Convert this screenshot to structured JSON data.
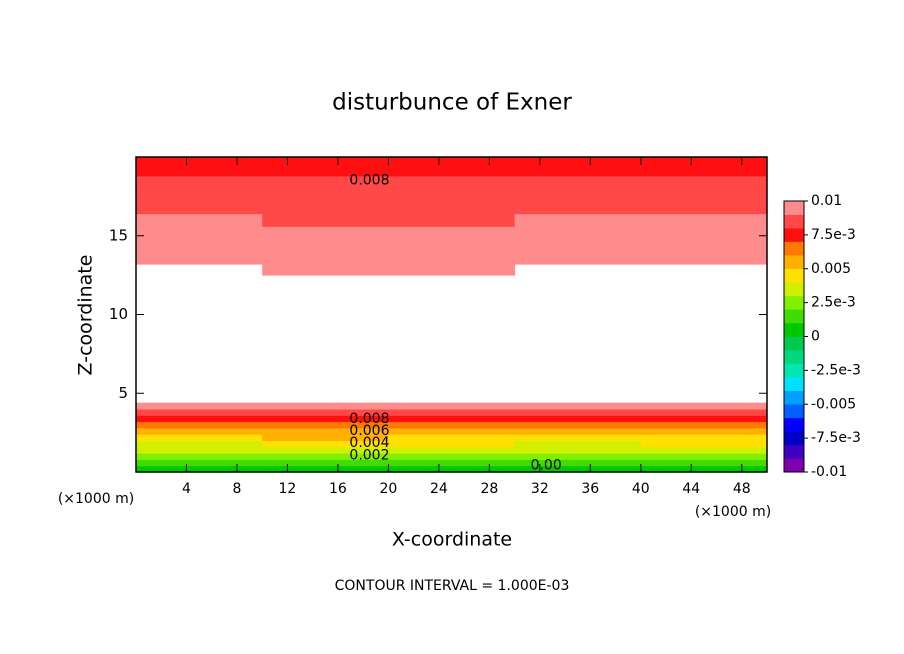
{
  "chart_data": {
    "type": "contour",
    "title": "disturbunce of Exner",
    "x_label": "X-coordinate",
    "y_label": "Z-coordinate",
    "x_unit": "(×1000 m)",
    "y_unit": "(×1000 m)",
    "footer": "CONTOUR INTERVAL = 1.000E-03",
    "xlim": [
      0,
      50
    ],
    "ylim": [
      0,
      20
    ],
    "xticks": [
      4,
      8,
      12,
      16,
      20,
      24,
      28,
      32,
      36,
      40,
      44,
      48
    ],
    "yticks": [
      5,
      10,
      15
    ],
    "x_edges": [
      0,
      10,
      20,
      30,
      40,
      50
    ],
    "y_edges": [
      0,
      0.4,
      0.8,
      1.2,
      1.6,
      2,
      2.4,
      2.8,
      3.2,
      3.6,
      4,
      4.4,
      12.5,
      13.2,
      14,
      14.8,
      15.6,
      16.4,
      17.2,
      18,
      18.8,
      19.6,
      20
    ],
    "z": [
      [
        0.0004,
        0.0006,
        0.0005,
        0.0004,
        0.0005
      ],
      [
        0.0012,
        0.0014,
        0.0013,
        0.0012,
        0.0013
      ],
      [
        0.0021,
        0.0023,
        0.0022,
        0.0021,
        0.0022
      ],
      [
        0.003,
        0.0032,
        0.0031,
        0.003,
        0.0031
      ],
      [
        0.0039,
        0.0041,
        0.004,
        0.0039,
        0.004
      ],
      [
        0.0048,
        0.005,
        0.0049,
        0.0048,
        0.0049
      ],
      [
        0.0057,
        0.0059,
        0.0058,
        0.0057,
        0.0058
      ],
      [
        0.0066,
        0.0068,
        0.0067,
        0.0066,
        0.0067
      ],
      [
        0.0076,
        0.0078,
        0.0077,
        0.0076,
        0.0077
      ],
      [
        0.0086,
        0.0088,
        0.0087,
        0.0086,
        0.0087
      ],
      [
        0.0096,
        0.0098,
        0.0097,
        0.0096,
        0.0097
      ],
      [
        0.0108,
        0.0108,
        0.0108,
        0.0108,
        0.0108
      ],
      [
        0.0101,
        0.0099,
        0.0099,
        0.0101,
        0.0101
      ],
      [
        0.0098,
        0.0097,
        0.0097,
        0.0098,
        0.0098
      ],
      [
        0.0096,
        0.0095,
        0.0095,
        0.0096,
        0.0096
      ],
      [
        0.0093,
        0.0092,
        0.0092,
        0.0093,
        0.0093
      ],
      [
        0.009,
        0.0089,
        0.0089,
        0.009,
        0.009
      ],
      [
        0.0087,
        0.0086,
        0.0086,
        0.0087,
        0.0087
      ],
      [
        0.0084,
        0.0083,
        0.0083,
        0.0084,
        0.0084
      ],
      [
        0.0081,
        0.008,
        0.008,
        0.0081,
        0.0081
      ],
      [
        0.0078,
        0.0078,
        0.0078,
        0.0079,
        0.0079
      ],
      [
        0.0077,
        0.0077,
        0.0077,
        0.0078,
        0.0078
      ]
    ],
    "contour_labels": [
      {
        "text": "0.008",
        "x": 18.5,
        "y": 18.5
      },
      {
        "text": "0.008",
        "x": 18.5,
        "y": 3.35
      },
      {
        "text": "0.006",
        "x": 18.5,
        "y": 2.6
      },
      {
        "text": "0.004",
        "x": 18.5,
        "y": 1.85
      },
      {
        "text": "0.002",
        "x": 18.5,
        "y": 1.05
      },
      {
        "text": "0.00",
        "x": 32.5,
        "y": 0.4
      }
    ],
    "colorbar": {
      "levels": [
        -0.01,
        -0.009,
        -0.008,
        -0.007,
        -0.006,
        -0.005,
        -0.004,
        -0.003,
        -0.002,
        -0.001,
        0,
        0.001,
        0.002,
        0.003,
        0.004,
        0.005,
        0.006,
        0.007,
        0.008,
        0.009,
        0.01
      ],
      "colors": [
        "#8000b0",
        "#4000c0",
        "#0000c8",
        "#0000ff",
        "#0060ff",
        "#00a0ff",
        "#00e0ff",
        "#00e8b0",
        "#00d880",
        "#00c850",
        "#00c800",
        "#40dc00",
        "#80f000",
        "#d0f000",
        "#ffe000",
        "#ffb000",
        "#ff7800",
        "#ff1010",
        "#ff4848",
        "#ff8c8c"
      ],
      "ticks": [
        -0.01,
        {
          "value": -0.0075,
          "label": "-7.5e-3"
        },
        -0.005,
        {
          "value": -0.0025,
          "label": "-2.5e-3"
        },
        0,
        {
          "value": 0.0025,
          "label": "2.5e-3"
        },
        0.005,
        {
          "value": 0.0075,
          "label": "7.5e-3"
        },
        0.01
      ]
    }
  }
}
